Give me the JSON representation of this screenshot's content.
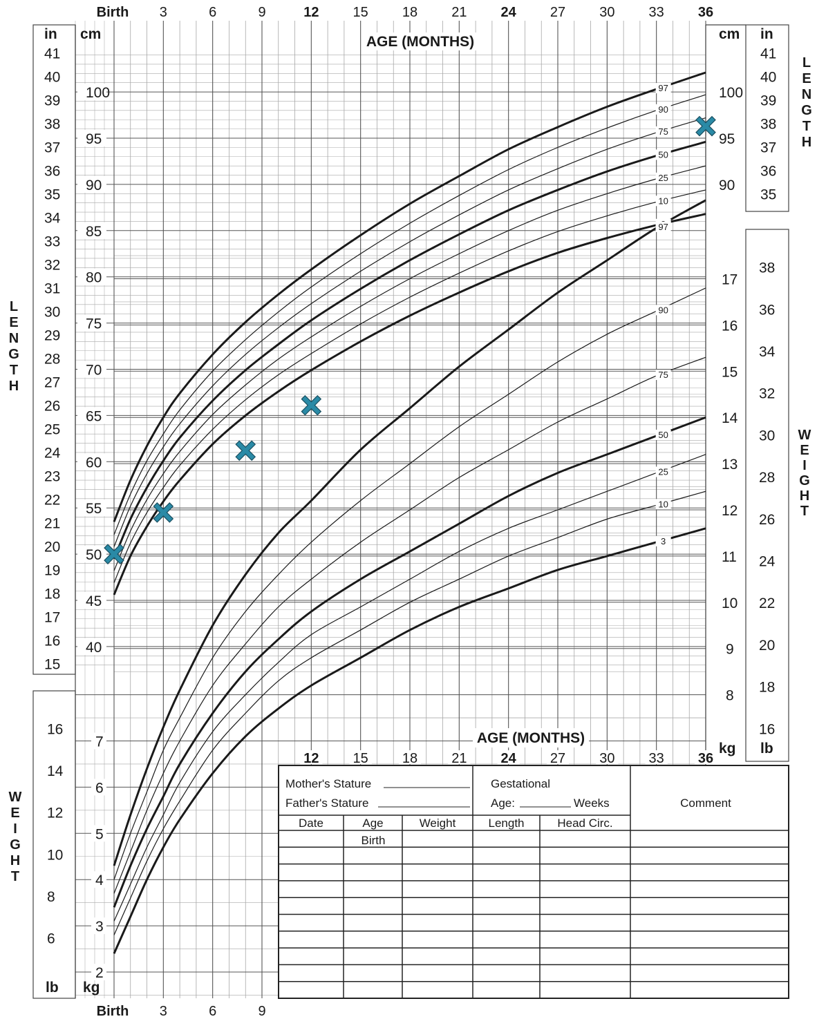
{
  "chart_data": {
    "type": "line",
    "x_label": "AGE (MONTHS)",
    "x_ticks": [
      "Birth",
      "3",
      "6",
      "9",
      "12",
      "15",
      "18",
      "21",
      "24",
      "27",
      "30",
      "33",
      "36"
    ],
    "x_range": [
      0,
      36
    ],
    "length_axis": {
      "label": "LENGTH",
      "unit_cm": "cm",
      "unit_in": "in",
      "cm_range": [
        38,
        104
      ],
      "cm_ticks": [
        40,
        45,
        50,
        55,
        60,
        65,
        70,
        75,
        80,
        85,
        90,
        95,
        100
      ],
      "in_ticks": [
        15,
        16,
        17,
        18,
        19,
        20,
        21,
        22,
        23,
        24,
        25,
        26,
        27,
        28,
        29,
        30,
        31,
        32,
        33,
        34,
        35,
        36,
        37,
        38,
        39,
        40,
        41
      ],
      "right_cm_ticks": [
        90,
        95,
        100
      ],
      "right_in_ticks": [
        35,
        36,
        37,
        38,
        39,
        40,
        41
      ]
    },
    "weight_axis": {
      "label": "WEIGHT",
      "unit_kg": "kg",
      "unit_lb": "lb",
      "kg_ticks_left": [
        2,
        3,
        4,
        5,
        6,
        7
      ],
      "lb_ticks_left": [
        6,
        8,
        10,
        12,
        14,
        16
      ],
      "kg_ticks_right": [
        8,
        9,
        10,
        11,
        12,
        13,
        14,
        15,
        16,
        17
      ],
      "lb_ticks_right": [
        16,
        18,
        20,
        22,
        24,
        26,
        28,
        30,
        32,
        34,
        36,
        38
      ]
    },
    "length_percentiles": [
      {
        "name": "3",
        "x": [
          0,
          1,
          2,
          3,
          4,
          6,
          8,
          10,
          12,
          15,
          18,
          21,
          24,
          27,
          30,
          33,
          36
        ],
        "y": [
          45.6,
          49.8,
          53.0,
          55.7,
          58.0,
          61.9,
          65.0,
          67.6,
          69.9,
          73.0,
          75.8,
          78.3,
          80.6,
          82.6,
          84.2,
          85.6,
          86.8
        ]
      },
      {
        "name": "10",
        "x": [
          0,
          1,
          2,
          3,
          4,
          6,
          8,
          10,
          12,
          15,
          18,
          21,
          24,
          27,
          30,
          33,
          36
        ],
        "y": [
          46.9,
          51.2,
          54.5,
          57.2,
          59.6,
          63.5,
          66.7,
          69.4,
          71.7,
          74.9,
          77.8,
          80.4,
          82.8,
          84.9,
          86.6,
          88.1,
          89.4
        ]
      },
      {
        "name": "25",
        "x": [
          0,
          1,
          2,
          3,
          4,
          6,
          8,
          10,
          12,
          15,
          18,
          21,
          24,
          27,
          30,
          33,
          36
        ],
        "y": [
          48.2,
          52.5,
          55.9,
          58.7,
          61.1,
          65.1,
          68.3,
          71.1,
          73.5,
          76.8,
          79.8,
          82.5,
          85.0,
          87.2,
          89.0,
          90.6,
          92.0
        ]
      },
      {
        "name": "50",
        "x": [
          0,
          1,
          2,
          3,
          4,
          6,
          8,
          10,
          12,
          15,
          18,
          21,
          24,
          27,
          30,
          33,
          36
        ],
        "y": [
          49.5,
          53.8,
          57.2,
          60.1,
          62.6,
          66.6,
          69.9,
          72.7,
          75.3,
          78.7,
          81.8,
          84.6,
          87.2,
          89.4,
          91.4,
          93.1,
          94.6
        ]
      },
      {
        "name": "75",
        "x": [
          0,
          1,
          2,
          3,
          4,
          6,
          8,
          10,
          12,
          15,
          18,
          21,
          24,
          27,
          30,
          33,
          36
        ],
        "y": [
          50.8,
          55.2,
          58.7,
          61.6,
          64.1,
          68.2,
          71.6,
          74.5,
          77.1,
          80.6,
          83.8,
          86.7,
          89.4,
          91.7,
          93.8,
          95.6,
          97.2
        ]
      },
      {
        "name": "90",
        "x": [
          0,
          1,
          2,
          3,
          4,
          6,
          8,
          10,
          12,
          15,
          18,
          21,
          24,
          27,
          30,
          33,
          36
        ],
        "y": [
          52.1,
          56.5,
          60.1,
          63.0,
          65.6,
          69.8,
          73.2,
          76.2,
          78.9,
          82.5,
          85.8,
          88.8,
          91.6,
          94.0,
          96.1,
          98.0,
          99.7
        ]
      },
      {
        "name": "97",
        "x": [
          0,
          1,
          2,
          3,
          4,
          6,
          8,
          10,
          12,
          15,
          18,
          21,
          24,
          27,
          30,
          33,
          36
        ],
        "y": [
          53.5,
          58.0,
          61.7,
          64.8,
          67.4,
          71.6,
          75.1,
          78.1,
          80.8,
          84.5,
          87.9,
          90.9,
          93.8,
          96.2,
          98.4,
          100.3,
          102.1
        ]
      }
    ],
    "weight_percentiles": [
      {
        "name": "3",
        "x": [
          0,
          1,
          2,
          3,
          4,
          6,
          8,
          10,
          12,
          15,
          18,
          21,
          24,
          27,
          30,
          33,
          36
        ],
        "y": [
          2.4,
          3.2,
          4.0,
          4.7,
          5.3,
          6.3,
          7.1,
          7.7,
          8.2,
          8.8,
          9.4,
          9.9,
          10.3,
          10.7,
          11.0,
          11.3,
          11.6
        ]
      },
      {
        "name": "10",
        "x": [
          0,
          1,
          2,
          3,
          4,
          6,
          8,
          10,
          12,
          15,
          18,
          21,
          24,
          27,
          30,
          33,
          36
        ],
        "y": [
          2.8,
          3.6,
          4.4,
          5.1,
          5.7,
          6.8,
          7.6,
          8.3,
          8.8,
          9.4,
          10.0,
          10.5,
          11.0,
          11.4,
          11.8,
          12.1,
          12.4
        ]
      },
      {
        "name": "25",
        "x": [
          0,
          1,
          2,
          3,
          4,
          6,
          8,
          10,
          12,
          15,
          18,
          21,
          24,
          27,
          30,
          33,
          36
        ],
        "y": [
          3.1,
          3.9,
          4.7,
          5.4,
          6.1,
          7.2,
          8.0,
          8.7,
          9.3,
          9.9,
          10.5,
          11.1,
          11.6,
          12.0,
          12.4,
          12.8,
          13.2
        ]
      },
      {
        "name": "50",
        "x": [
          0,
          1,
          2,
          3,
          4,
          6,
          8,
          10,
          12,
          15,
          18,
          21,
          24,
          27,
          30,
          33,
          36
        ],
        "y": [
          3.4,
          4.3,
          5.1,
          5.8,
          6.5,
          7.6,
          8.5,
          9.2,
          9.8,
          10.5,
          11.1,
          11.7,
          12.3,
          12.8,
          13.2,
          13.6,
          14.0
        ]
      },
      {
        "name": "75",
        "x": [
          0,
          1,
          2,
          3,
          4,
          6,
          8,
          10,
          12,
          15,
          18,
          21,
          24,
          27,
          30,
          33,
          36
        ],
        "y": [
          3.7,
          4.6,
          5.5,
          6.3,
          7.0,
          8.2,
          9.1,
          9.9,
          10.5,
          11.3,
          12.0,
          12.7,
          13.3,
          13.9,
          14.4,
          14.9,
          15.3
        ]
      },
      {
        "name": "90",
        "x": [
          0,
          1,
          2,
          3,
          4,
          6,
          8,
          10,
          12,
          15,
          18,
          21,
          24,
          27,
          30,
          33,
          36
        ],
        "y": [
          4.0,
          5.0,
          5.9,
          6.8,
          7.5,
          8.8,
          9.8,
          10.6,
          11.3,
          12.2,
          13.0,
          13.8,
          14.5,
          15.2,
          15.8,
          16.3,
          16.8
        ]
      },
      {
        "name": "97",
        "x": [
          0,
          1,
          2,
          3,
          4,
          6,
          8,
          10,
          12,
          15,
          18,
          21,
          24,
          27,
          30,
          33,
          36
        ],
        "y": [
          4.3,
          5.4,
          6.4,
          7.3,
          8.1,
          9.5,
          10.6,
          11.5,
          12.2,
          13.3,
          14.2,
          15.1,
          15.9,
          16.7,
          17.4,
          18.1,
          18.7
        ]
      }
    ],
    "measurements": [
      {
        "age_months": 0,
        "length_cm": 50.0
      },
      {
        "age_months": 3,
        "length_cm": 54.5
      },
      {
        "age_months": 8,
        "length_cm": 61.2
      },
      {
        "age_months": 12,
        "length_cm": 66.1
      },
      {
        "age_months": 36,
        "length_cm": 96.3
      }
    ],
    "marker_color": "#2a8aa6",
    "curve_color": "#1a1a1a"
  },
  "form": {
    "mothers_stature": "Mother's Stature",
    "fathers_stature": "Father's Stature",
    "gestational": "Gestational",
    "age_label": "Age:",
    "weeks": "Weeks",
    "comment": "Comment",
    "columns": [
      "Date",
      "Age",
      "Weight",
      "Length",
      "Head  Circ."
    ],
    "first_row_age": "Birth"
  }
}
